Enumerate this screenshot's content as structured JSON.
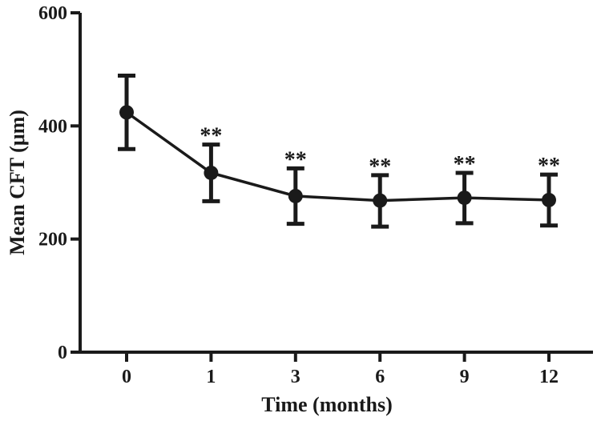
{
  "chart_data": {
    "type": "line",
    "x_categories": [
      "0",
      "1",
      "3",
      "6",
      "9",
      "12"
    ],
    "series": [
      {
        "values": [
          424,
          317,
          276,
          268,
          273,
          269
        ],
        "error_upper": [
          489,
          367,
          325,
          313,
          317,
          314
        ],
        "error_lower": [
          359,
          267,
          227,
          222,
          228,
          224
        ]
      }
    ],
    "annotations": [
      "",
      "**",
      "**",
      "**",
      "**",
      "**"
    ],
    "xlabel": "Time (months)",
    "ylabel": "Mean CFT (μm)",
    "yticks": [
      0,
      200,
      400,
      600
    ],
    "ylim": [
      0,
      600
    ],
    "grid": false,
    "color": "#1a1a1a"
  }
}
